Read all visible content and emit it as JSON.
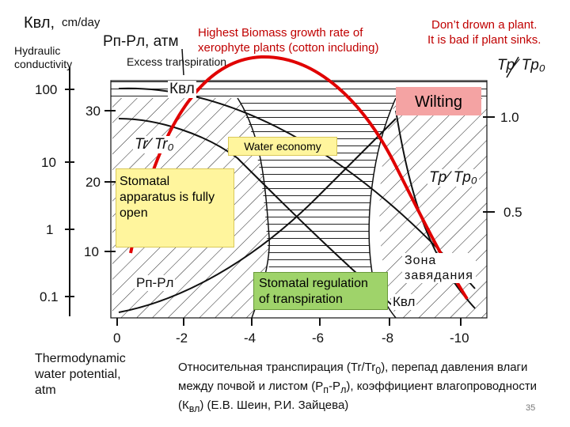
{
  "top_left": {
    "kvl": "Квл,",
    "unit": "cm/day",
    "hydraulic": "Hydraulic\nconductivity"
  },
  "top_labels": {
    "pp_pl": "Рп-Рл, атм",
    "highest_biomass": "Highest Biomass growth rate of\nxerophyte plants (cotton including)",
    "dont_drown": "Don’t drown a plant.\nIt is bad if plant sinks.",
    "tp_tp0": "Tp⁄ Tp₀",
    "excess": "Excess transpiration"
  },
  "zones": {
    "wilting": "Wilting",
    "water_economy": "Water economy",
    "stomatal_open": "Stomatal\napparatus is fully\nopen",
    "stomatal_regulation": "Stomatal regulation\nof transpiration",
    "zona_zavyadaniya": "Зона\nзавядания"
  },
  "inner_labels": {
    "kvl_top": "Квл",
    "tr_tr0": "Tr⁄ Tr₀",
    "tp_tp0_inner": "Tp⁄ Tp₀",
    "pp_pl_inner": "Рп-Рл",
    "kvl_bottom": "Квл"
  },
  "axes": {
    "left_outer_ticks": [
      "100",
      "10",
      "1",
      "0.1"
    ],
    "left_inner_ticks": [
      "30",
      "20",
      "10"
    ],
    "right_ticks": [
      "1.0",
      "0.5"
    ],
    "x_ticks": [
      "0",
      "-2",
      "-4",
      "-6",
      "-8",
      "-10"
    ],
    "thermo": "Thermodynamic\nwater potential,\natm"
  },
  "caption": {
    "part1": "Относительная транспирация (Tr/Tr",
    "sub0": "0",
    "part2": "), перепад давления влаги между почвой и листом (Р",
    "sub_p": "п",
    "part3": "-Р",
    "sub_l": "л",
    "part4": "), коэффициент влагопроводности (К",
    "sub_vl": "вл",
    "part5": ") (Е.В. Шеин, Р.И. Зайцева)"
  },
  "slide_number": "35",
  "colors": {
    "red_curve": "#e00000",
    "yellow": "#fff59d",
    "green": "#9fd36a",
    "wilting": "#f4a3a3"
  }
}
